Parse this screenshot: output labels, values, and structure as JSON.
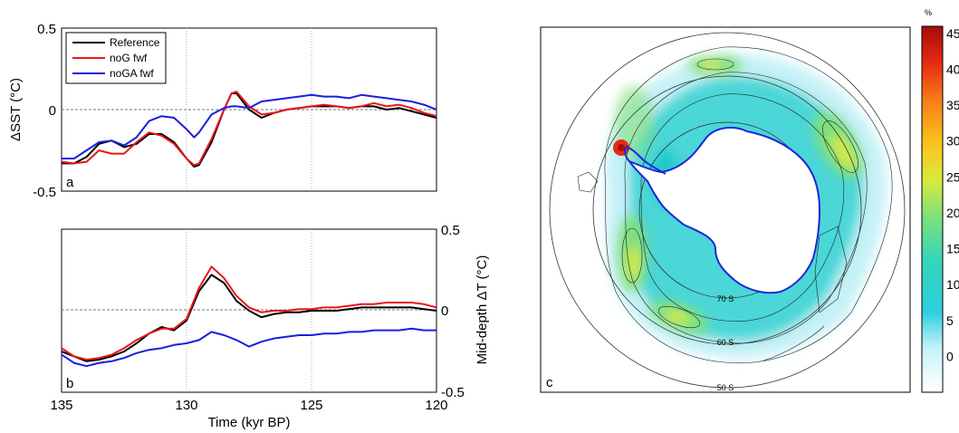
{
  "chart_data": [
    {
      "panel": "a",
      "type": "line",
      "ylabel": "ΔSST (°C)",
      "xlim": [
        135,
        120
      ],
      "ylim": [
        -0.5,
        0.5
      ],
      "yticks": [
        "0.5",
        "0",
        "-0.5"
      ],
      "xgrid": [
        130,
        125
      ],
      "zero_line": true,
      "legend": {
        "placement": "top-left",
        "entries": [
          "Reference",
          "noG fwf",
          "noGA fwf"
        ]
      },
      "series": [
        {
          "name": "Reference",
          "color": "#000000",
          "x": [
            135,
            134.5,
            134,
            133.5,
            133,
            132.5,
            132,
            131.5,
            131,
            130.5,
            130,
            129.7,
            129.5,
            129,
            128.5,
            128.2,
            128,
            127.5,
            127,
            126.5,
            126,
            125.5,
            125,
            124.5,
            124,
            123.5,
            123,
            122.5,
            122,
            121.5,
            121,
            120.5,
            120
          ],
          "y": [
            -0.33,
            -0.33,
            -0.29,
            -0.21,
            -0.19,
            -0.23,
            -0.21,
            -0.15,
            -0.15,
            -0.2,
            -0.3,
            -0.35,
            -0.34,
            -0.2,
            0.0,
            0.1,
            0.1,
            0.0,
            -0.05,
            -0.02,
            0.0,
            0.01,
            0.02,
            0.02,
            0.02,
            0.01,
            0.02,
            0.02,
            0.0,
            0.01,
            -0.01,
            -0.03,
            -0.05
          ]
        },
        {
          "name": "noG fwf",
          "color": "#e8171d",
          "x": [
            135,
            134.5,
            134,
            133.5,
            133,
            132.5,
            132,
            131.5,
            131,
            130.5,
            130,
            129.7,
            129.5,
            129,
            128.5,
            128.2,
            128,
            127.5,
            127,
            126.5,
            126,
            125.5,
            125,
            124.5,
            124,
            123.5,
            123,
            122.5,
            122,
            121.5,
            121,
            120.5,
            120
          ],
          "y": [
            -0.32,
            -0.33,
            -0.32,
            -0.25,
            -0.27,
            -0.27,
            -0.2,
            -0.14,
            -0.16,
            -0.21,
            -0.3,
            -0.34,
            -0.33,
            -0.18,
            0.0,
            0.1,
            0.11,
            0.02,
            -0.03,
            -0.02,
            0.0,
            0.01,
            0.02,
            0.03,
            0.02,
            0.01,
            0.02,
            0.04,
            0.02,
            0.03,
            0.01,
            -0.02,
            -0.04
          ]
        },
        {
          "name": "noGA fwf",
          "color": "#1b1ee0",
          "x": [
            135,
            134.5,
            134,
            133.5,
            133,
            132.5,
            132,
            131.5,
            131,
            130.5,
            130,
            129.7,
            129.5,
            129,
            128.5,
            128.2,
            128,
            127.5,
            127,
            126.5,
            126,
            125.5,
            125,
            124.5,
            124,
            123.5,
            123,
            122.5,
            122,
            121.5,
            121,
            120.5,
            120
          ],
          "y": [
            -0.3,
            -0.3,
            -0.25,
            -0.2,
            -0.19,
            -0.22,
            -0.17,
            -0.07,
            -0.04,
            -0.05,
            -0.12,
            -0.17,
            -0.14,
            -0.03,
            0.01,
            0.02,
            0.02,
            0.01,
            0.05,
            0.06,
            0.07,
            0.08,
            0.09,
            0.08,
            0.08,
            0.07,
            0.09,
            0.08,
            0.07,
            0.06,
            0.05,
            0.03,
            0.0
          ]
        }
      ]
    },
    {
      "panel": "b",
      "type": "line",
      "xlabel": "Time (kyr BP)",
      "ylabel": "Mid-depth ΔT (°C)",
      "xlim": [
        135,
        120
      ],
      "ylim": [
        -0.5,
        0.5
      ],
      "xticks": [
        "135",
        "130",
        "125",
        "120"
      ],
      "yticks": [
        "0.5",
        "0",
        "-0.5"
      ],
      "xgrid": [
        130,
        125
      ],
      "zero_line": true,
      "series": [
        {
          "name": "Reference",
          "color": "#000000",
          "x": [
            135,
            134.5,
            134,
            133.5,
            133,
            132.5,
            132,
            131.5,
            131,
            130.5,
            130,
            129.5,
            129,
            128.5,
            128,
            127.5,
            127,
            126.5,
            126,
            125.5,
            125,
            124.5,
            124,
            123.5,
            123,
            122.5,
            122,
            121.5,
            121,
            120.5,
            120
          ],
          "y": [
            -0.25,
            -0.28,
            -0.31,
            -0.3,
            -0.28,
            -0.25,
            -0.2,
            -0.14,
            -0.1,
            -0.12,
            -0.06,
            0.12,
            0.22,
            0.17,
            0.06,
            0.0,
            -0.04,
            -0.02,
            -0.01,
            -0.01,
            0.0,
            0.0,
            0.0,
            0.01,
            0.02,
            0.02,
            0.02,
            0.02,
            0.02,
            0.01,
            0.0
          ]
        },
        {
          "name": "noG fwf",
          "color": "#e8171d",
          "x": [
            135,
            134.5,
            134,
            133.5,
            133,
            132.5,
            132,
            131.5,
            131,
            130.5,
            130,
            129.5,
            129,
            128.5,
            128,
            127.5,
            127,
            126.5,
            126,
            125.5,
            125,
            124.5,
            124,
            123.5,
            123,
            122.5,
            122,
            121.5,
            121,
            120.5,
            120
          ],
          "y": [
            -0.23,
            -0.28,
            -0.3,
            -0.29,
            -0.27,
            -0.23,
            -0.18,
            -0.14,
            -0.11,
            -0.11,
            -0.05,
            0.14,
            0.27,
            0.2,
            0.09,
            0.02,
            -0.01,
            0.0,
            0.0,
            0.01,
            0.01,
            0.02,
            0.02,
            0.03,
            0.04,
            0.04,
            0.05,
            0.05,
            0.05,
            0.04,
            0.02
          ]
        },
        {
          "name": "noGA fwf",
          "color": "#1b1ee0",
          "x": [
            135,
            134.5,
            134,
            133.5,
            133,
            132.5,
            132,
            131.5,
            131,
            130.5,
            130,
            129.5,
            129,
            128.5,
            128,
            127.5,
            127,
            126.5,
            126,
            125.5,
            125,
            124.5,
            124,
            123.5,
            123,
            122.5,
            122,
            121.5,
            121,
            120.5,
            120
          ],
          "y": [
            -0.27,
            -0.32,
            -0.34,
            -0.32,
            -0.31,
            -0.29,
            -0.26,
            -0.24,
            -0.23,
            -0.21,
            -0.2,
            -0.18,
            -0.13,
            -0.15,
            -0.18,
            -0.22,
            -0.19,
            -0.17,
            -0.16,
            -0.15,
            -0.15,
            -0.14,
            -0.14,
            -0.13,
            -0.13,
            -0.12,
            -0.12,
            -0.12,
            -0.11,
            -0.12,
            -0.12
          ]
        }
      ]
    },
    {
      "panel": "c",
      "type": "heatmap",
      "description_visible": "south polar stereographic map with contours",
      "latitude_labels": [
        "50 S",
        "60 S",
        "70 S"
      ],
      "coastline_color": "#1b28d6",
      "colorbar": {
        "unit": "%",
        "ticks": [
          "45",
          "40",
          "35",
          "30",
          "25",
          "20",
          "15",
          "10",
          "5",
          "0"
        ],
        "range": [
          -5,
          46
        ],
        "colors": [
          "#ffffff",
          "#8fe8f2",
          "#2ccfe0",
          "#35d6b8",
          "#7fe07a",
          "#d8ea3c",
          "#fbc41e",
          "#f77c16",
          "#e52b12",
          "#a40c0c"
        ]
      }
    }
  ]
}
